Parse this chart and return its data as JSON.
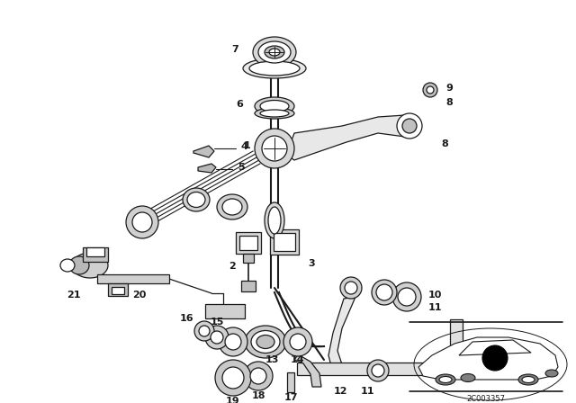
{
  "bg_color": "#ffffff",
  "line_color": "#1a1a1a",
  "diagram_code": "2C003357",
  "fig_w": 6.4,
  "fig_h": 4.48,
  "dpi": 100
}
